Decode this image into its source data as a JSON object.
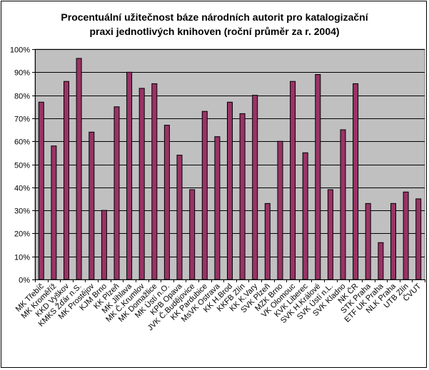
{
  "chart_data": {
    "type": "bar",
    "title_lines": [
      "Procentuální užitečnost báze národních autorit pro katalogizační",
      "praxi jednotlivých knihoven (roční průměr za r. 2004)"
    ],
    "categories": [
      "MK Třebíč",
      "MK Kroměříž",
      "KKD Vyškov",
      "KMKS Žďár n.S.",
      "MK Prostějov",
      "KJM Brno",
      "KK Plzeň",
      "MK Jihlava",
      "MK Č.Krumlov",
      "MK Domažlice",
      "MK Ústí n.O.",
      "KPB Opava",
      "JVK Č.Budějovice",
      "KK Pardubice",
      "MsVK Ostrava",
      "KK H.Brod",
      "KKFB Zlín",
      "KK K.Vary",
      "SVK Plzeň",
      "MZK Brno",
      "VK Olomouc",
      "KVK Liberec",
      "SVK H.Králové",
      "SVK Ústí n.L.",
      "SVK Kladno",
      "NK ČR",
      "STK Praha",
      "ETF UK Praha",
      "NLK Praha",
      "UTB Zlín",
      "ČVUT"
    ],
    "values": [
      77,
      58,
      86,
      96,
      64,
      30,
      75,
      90,
      83,
      85,
      67,
      54,
      39,
      73,
      62,
      77,
      72,
      80,
      33,
      60,
      86,
      55,
      89,
      39,
      65,
      85,
      33,
      16,
      33,
      38,
      35
    ],
    "ylim": [
      0,
      100
    ],
    "yticks": [
      "0%",
      "10%",
      "20%",
      "30%",
      "40%",
      "50%",
      "60%",
      "70%",
      "80%",
      "90%",
      "100%"
    ],
    "bar_color": "#993366",
    "plot_background": "#c0c0c0",
    "gridlines": true,
    "legend": false
  }
}
